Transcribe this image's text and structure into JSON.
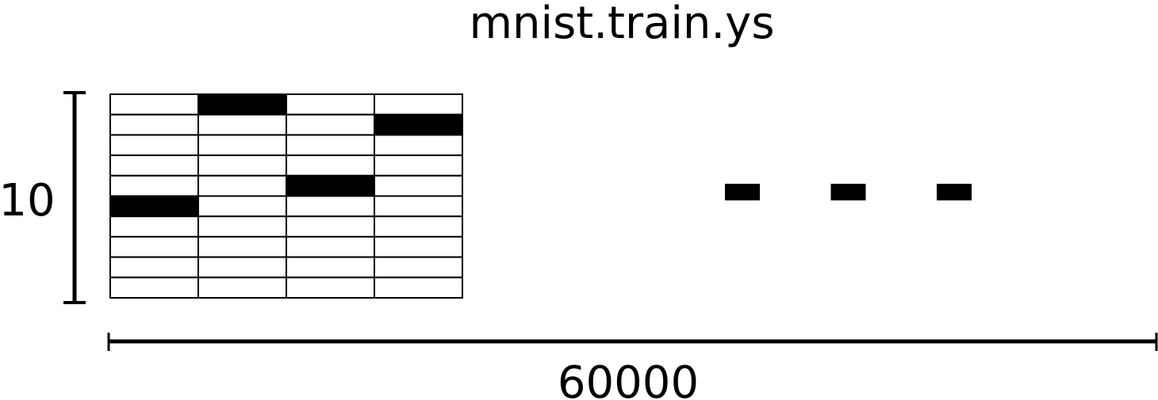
{
  "title": "mnist.train.ys",
  "height_label": "10",
  "width_label": "60000",
  "grid": {
    "rows": 10,
    "columns": 4,
    "filled_row_per_column": [
      5,
      0,
      4,
      1
    ]
  },
  "ellipsis_dash_count": 3,
  "colors": {
    "ink": "#000000",
    "background": "#ffffff"
  }
}
